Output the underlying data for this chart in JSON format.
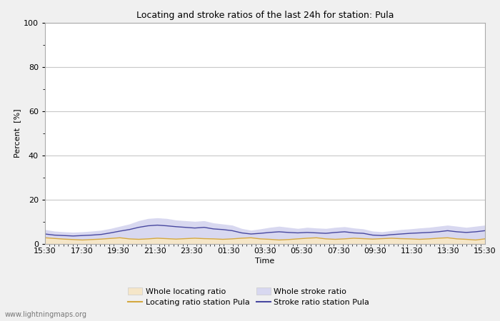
{
  "title": "Locating and stroke ratios of the last 24h for station: Pula",
  "xlabel": "Time",
  "ylabel": "Percent  [%]",
  "watermark": "www.lightningmaps.org",
  "ylim": [
    0,
    100
  ],
  "yticks": [
    0,
    20,
    40,
    60,
    80,
    100
  ],
  "yticks_minor": [
    10,
    30,
    50,
    70,
    90
  ],
  "x_labels": [
    "15:30",
    "17:30",
    "19:30",
    "21:30",
    "23:30",
    "01:30",
    "03:30",
    "05:30",
    "07:30",
    "09:30",
    "11:30",
    "13:30",
    "15:30"
  ],
  "bg_color": "#f0f0f0",
  "plot_bg_color": "#ffffff",
  "grid_color": "#c8c8c8",
  "whole_locating_fill_color": "#f5e6c8",
  "whole_stroke_fill_color": "#d8d8f0",
  "locating_line_color": "#d4a840",
  "stroke_line_color": "#4848a0",
  "whole_locating_values": [
    3.0,
    2.8,
    2.5,
    2.3,
    2.0,
    2.2,
    2.5,
    2.8,
    3.0,
    2.5,
    2.3,
    2.5,
    2.8,
    2.6,
    2.4,
    2.6,
    2.8,
    2.6,
    2.5,
    2.3,
    2.5,
    2.8,
    3.0,
    2.5,
    2.3,
    2.0,
    2.2,
    2.5,
    2.8,
    3.0,
    2.5,
    2.3,
    2.5,
    2.8,
    2.6,
    2.4,
    2.6,
    2.8,
    2.6,
    2.5,
    2.3,
    2.5,
    2.8,
    3.0,
    2.5,
    2.3,
    2.0,
    2.5
  ],
  "whole_stroke_values": [
    6.5,
    5.8,
    5.5,
    5.3,
    5.5,
    5.8,
    6.2,
    7.0,
    8.0,
    9.0,
    10.5,
    11.5,
    11.8,
    11.5,
    10.8,
    10.5,
    10.2,
    10.5,
    9.5,
    9.0,
    8.5,
    7.0,
    6.2,
    6.8,
    7.5,
    8.0,
    7.5,
    7.0,
    7.5,
    7.2,
    7.0,
    7.5,
    7.8,
    7.2,
    6.8,
    5.8,
    5.5,
    6.0,
    6.5,
    6.8,
    7.2,
    7.5,
    8.0,
    8.5,
    8.0,
    7.5,
    8.0,
    8.5
  ],
  "locating_station_values": [
    2.8,
    2.5,
    2.2,
    2.0,
    1.8,
    2.0,
    2.2,
    2.5,
    2.8,
    2.3,
    2.1,
    2.3,
    2.6,
    2.4,
    2.2,
    2.4,
    2.6,
    2.4,
    2.3,
    2.1,
    2.3,
    2.6,
    2.8,
    2.3,
    2.1,
    1.8,
    2.0,
    2.3,
    2.6,
    2.8,
    2.3,
    2.1,
    2.3,
    2.6,
    2.4,
    2.2,
    2.4,
    2.6,
    2.4,
    2.3,
    2.1,
    2.3,
    2.6,
    2.8,
    2.3,
    2.1,
    1.8,
    2.3
  ],
  "stroke_station_values": [
    4.5,
    4.0,
    3.8,
    3.6,
    3.8,
    4.0,
    4.3,
    5.0,
    5.8,
    6.5,
    7.5,
    8.2,
    8.5,
    8.2,
    7.8,
    7.5,
    7.2,
    7.5,
    6.8,
    6.5,
    6.0,
    5.0,
    4.5,
    4.8,
    5.2,
    5.5,
    5.2,
    5.0,
    5.2,
    5.0,
    4.8,
    5.2,
    5.5,
    5.0,
    4.8,
    4.0,
    3.8,
    4.2,
    4.5,
    4.8,
    5.0,
    5.2,
    5.5,
    6.0,
    5.5,
    5.2,
    5.5,
    6.0
  ],
  "n_points": 48
}
